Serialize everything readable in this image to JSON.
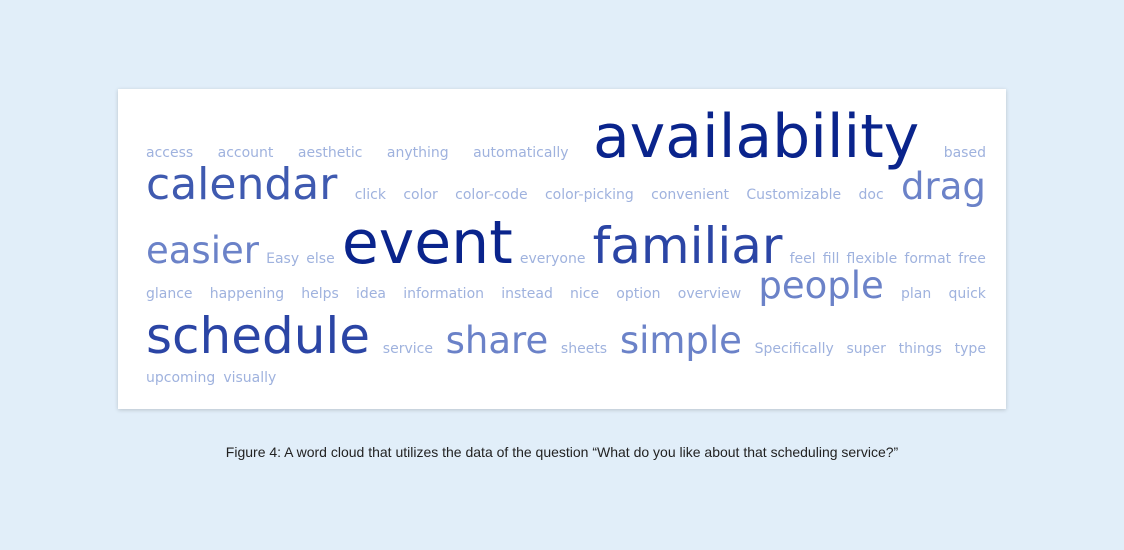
{
  "figure": {
    "caption": "Figure 4: A word cloud that utilizes the data of the question “What do you like about that scheduling service?”"
  },
  "lines": [
    [
      {
        "text": "access",
        "size": 1
      },
      {
        "text": "account",
        "size": 1
      },
      {
        "text": "aesthetic",
        "size": 1
      },
      {
        "text": "anything",
        "size": 1
      },
      {
        "text": "automatically",
        "size": 1
      },
      {
        "text": "availability",
        "size": 5
      },
      {
        "text": "based",
        "size": 1
      }
    ],
    [
      {
        "text": "calendar",
        "size": 3
      },
      {
        "text": "click",
        "size": 1
      },
      {
        "text": "color",
        "size": 1
      },
      {
        "text": "color-code",
        "size": 1
      },
      {
        "text": "color-picking",
        "size": 1
      },
      {
        "text": "convenient",
        "size": 1
      },
      {
        "text": "Customizable",
        "size": 1
      },
      {
        "text": "doc",
        "size": 1
      },
      {
        "text": "drag",
        "size": 2
      }
    ],
    [
      {
        "text": "easier",
        "size": 2
      },
      {
        "text": "Easy",
        "size": 1
      },
      {
        "text": "else",
        "size": 1
      },
      {
        "text": "event",
        "size": 5
      },
      {
        "text": "everyone",
        "size": 1
      },
      {
        "text": "familiar",
        "size": 4
      },
      {
        "text": "feel",
        "size": 1
      },
      {
        "text": "fill",
        "size": 1
      },
      {
        "text": "flexible",
        "size": 1
      },
      {
        "text": "format",
        "size": 1
      },
      {
        "text": "free",
        "size": 1
      }
    ],
    [
      {
        "text": "glance",
        "size": 1
      },
      {
        "text": "happening",
        "size": 1
      },
      {
        "text": "helps",
        "size": 1
      },
      {
        "text": "idea",
        "size": 1
      },
      {
        "text": "information",
        "size": 1
      },
      {
        "text": "instead",
        "size": 1
      },
      {
        "text": "nice",
        "size": 1
      },
      {
        "text": "option",
        "size": 1
      },
      {
        "text": "overview",
        "size": 1
      },
      {
        "text": "people",
        "size": 2
      },
      {
        "text": "plan",
        "size": 1
      },
      {
        "text": "quick",
        "size": 1
      }
    ],
    [
      {
        "text": "schedule",
        "size": 4
      },
      {
        "text": "service",
        "size": 1
      },
      {
        "text": "share",
        "size": 2
      },
      {
        "text": "sheets",
        "size": 1
      },
      {
        "text": "simple",
        "size": 2
      },
      {
        "text": "Specifically",
        "size": 1
      },
      {
        "text": "super",
        "size": 1
      },
      {
        "text": "things",
        "size": 1
      },
      {
        "text": "type",
        "size": 1
      }
    ],
    [
      {
        "text": "upcoming",
        "size": 1
      },
      {
        "text": "visually",
        "size": 1
      }
    ]
  ]
}
